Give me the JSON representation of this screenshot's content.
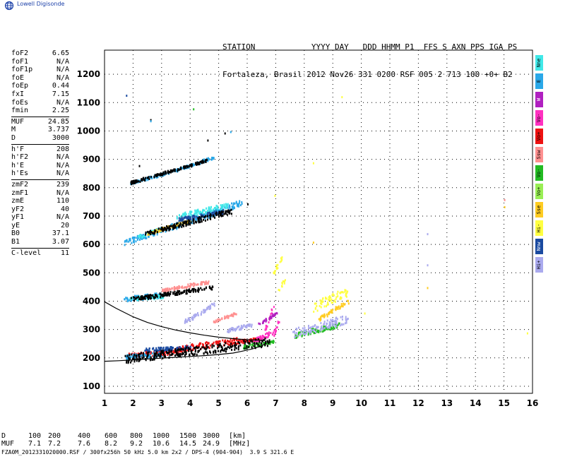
{
  "brand": {
    "name": "Lowell Digisonde"
  },
  "header": {
    "line1": "STATION            YYYY DAY   DDD HHMM P1  FFS S AXN PPS IGA PS",
    "line2": "Fortaleza, Brasil 2012 Nov26 331 0200 RSF 005 2 713 100 +0+ B2"
  },
  "parameters": {
    "group1": [
      {
        "name": "foF2",
        "value": "6.65"
      },
      {
        "name": "foF1",
        "value": "N/A"
      },
      {
        "name": "foF1p",
        "value": "N/A"
      },
      {
        "name": "foE",
        "value": "N/A"
      },
      {
        "name": "foEp",
        "value": "0.44"
      },
      {
        "name": "fxI",
        "value": "7.15"
      },
      {
        "name": "foEs",
        "value": "N/A"
      },
      {
        "name": "fmin",
        "value": "2.25"
      }
    ],
    "group2": [
      {
        "name": "MUF",
        "value": "24.85"
      },
      {
        "name": "M",
        "value": "3.737"
      },
      {
        "name": "D",
        "value": "3000"
      }
    ],
    "group3": [
      {
        "name": "h'F",
        "value": "208"
      },
      {
        "name": "h'F2",
        "value": "N/A"
      },
      {
        "name": "h'E",
        "value": "N/A"
      },
      {
        "name": "h'Es",
        "value": "N/A"
      }
    ],
    "group4": [
      {
        "name": "zmF2",
        "value": "239"
      },
      {
        "name": "zmF1",
        "value": "N/A"
      },
      {
        "name": "zmE",
        "value": "110"
      },
      {
        "name": "yF2",
        "value": "40"
      },
      {
        "name": "yF1",
        "value": "N/A"
      },
      {
        "name": "yE",
        "value": "20"
      },
      {
        "name": "B0",
        "value": "37.1"
      },
      {
        "name": "B1",
        "value": "3.07"
      }
    ],
    "group5": [
      {
        "name": "C-level",
        "value": "11"
      }
    ]
  },
  "legend": [
    {
      "label": "Nne",
      "color": "#40e8e8"
    },
    {
      "label": "E",
      "color": "#2aa8e8"
    },
    {
      "label": "W",
      "color": "#b020c0"
    },
    {
      "label": "Vo-",
      "color": "#ff30c0"
    },
    {
      "label": "Vo+",
      "color": "#ee1111"
    },
    {
      "label": "Ssw",
      "color": "#ff9090"
    },
    {
      "label": "Vo-",
      "color": "#22bb22"
    },
    {
      "label": "Vo+",
      "color": "#99ee55"
    },
    {
      "label": "Sse",
      "color": "#ffcc22"
    },
    {
      "label": "Hi-",
      "color": "#ffff40"
    },
    {
      "label": "Nnw",
      "color": "#1a4aa0"
    },
    {
      "label": "Hi+",
      "color": "#aaaaee"
    }
  ],
  "chart_data": {
    "type": "scatter",
    "title": "",
    "xlabel": "",
    "ylabel": "",
    "xlim": [
      1,
      16
    ],
    "ylim": [
      75,
      1285
    ],
    "x_ticks": [
      1,
      2,
      3,
      4,
      5,
      6,
      7,
      8,
      9,
      10,
      11,
      12,
      13,
      14,
      15,
      16
    ],
    "y_ticks": [
      100,
      200,
      300,
      400,
      500,
      600,
      700,
      800,
      900,
      1000,
      1100,
      1200
    ],
    "grid": true,
    "traces": [
      {
        "name": "Vo+",
        "color": "#ee1111",
        "segments": [
          [
            1.8,
            210,
            2.6,
            220,
            8
          ],
          [
            2.6,
            215,
            3.6,
            230,
            10
          ],
          [
            3.6,
            235,
            4.6,
            250,
            10
          ],
          [
            4.6,
            245,
            5.6,
            265,
            10
          ],
          [
            5.6,
            260,
            6.5,
            270,
            6
          ]
        ]
      },
      {
        "name": "E",
        "color": "#2aa8e8",
        "segments": [
          [
            1.7,
            205,
            3.0,
            215,
            8
          ],
          [
            1.7,
            410,
            3.0,
            425,
            8
          ],
          [
            1.7,
            610,
            3.2,
            660,
            8
          ],
          [
            3.2,
            660,
            5.8,
            750,
            10
          ],
          [
            1.9,
            820,
            3.4,
            860,
            4
          ],
          [
            3.4,
            860,
            4.8,
            910,
            4
          ]
        ]
      },
      {
        "name": "Nne",
        "color": "#40e8e8",
        "segments": [
          [
            1.8,
            410,
            3.1,
            420,
            6
          ],
          [
            3.5,
            700,
            5.3,
            740,
            8
          ],
          [
            2.2,
            630,
            3.0,
            660,
            5
          ]
        ]
      },
      {
        "name": "Vo-",
        "color": "#ff30c0",
        "segments": [
          [
            6.2,
            260,
            7.0,
            300,
            8
          ],
          [
            6.9,
            280,
            7.1,
            330,
            6
          ],
          [
            6.6,
            300,
            6.9,
            390,
            6
          ]
        ]
      },
      {
        "name": "Vo-",
        "color": "#22bb22",
        "segments": [
          [
            5.8,
            240,
            6.9,
            260,
            6
          ],
          [
            7.6,
            280,
            9.2,
            320,
            8
          ]
        ]
      },
      {
        "name": "Hi+",
        "color": "#aaaaee",
        "segments": [
          [
            7.6,
            290,
            9.5,
            340,
            14
          ],
          [
            3.8,
            330,
            4.8,
            390,
            6
          ],
          [
            5.3,
            300,
            6.2,
            320,
            6
          ]
        ]
      },
      {
        "name": "Hi-",
        "color": "#ffff40",
        "segments": [
          [
            8.3,
            380,
            9.5,
            440,
            16
          ],
          [
            7.1,
            440,
            7.3,
            480,
            4
          ],
          [
            6.9,
            500,
            7.2,
            560,
            4
          ]
        ]
      },
      {
        "name": "Sse",
        "color": "#ffcc22",
        "segments": [
          [
            8.5,
            340,
            9.5,
            400,
            6
          ],
          [
            2.5,
            640,
            4.0,
            690,
            4
          ]
        ]
      },
      {
        "name": "Ssw",
        "color": "#ff9090",
        "segments": [
          [
            4.8,
            330,
            5.6,
            360,
            4
          ],
          [
            3.0,
            440,
            4.6,
            470,
            5
          ]
        ]
      },
      {
        "name": "Nnw",
        "color": "#1a4aa0",
        "segments": [
          [
            2.4,
            230,
            4.0,
            240,
            6
          ],
          [
            3.6,
            690,
            5.2,
            720,
            6
          ]
        ]
      },
      {
        "name": "W",
        "color": "#b020c0",
        "segments": [
          [
            6.4,
            320,
            7.0,
            360,
            4
          ]
        ]
      },
      {
        "name": "noise",
        "color": "#000000",
        "segments": [
          [
            1.7,
            200,
            6.8,
            260,
            14
          ],
          [
            1.9,
            410,
            4.8,
            450,
            6
          ],
          [
            2.4,
            640,
            5.4,
            720,
            8
          ],
          [
            1.9,
            820,
            4.6,
            900,
            4
          ]
        ]
      }
    ],
    "isolated_points": [
      {
        "x": 1.75,
        "y": 1128,
        "color": "#1a4aa0"
      },
      {
        "x": 2.6,
        "y": 1042,
        "color": "#000000"
      },
      {
        "x": 2.6,
        "y": 1038,
        "color": "#2aa8e8"
      },
      {
        "x": 5.2,
        "y": 995,
        "color": "#000000"
      },
      {
        "x": 5.4,
        "y": 1000,
        "color": "#2aa8e8"
      },
      {
        "x": 4.6,
        "y": 970,
        "color": "#000000"
      },
      {
        "x": 9.3,
        "y": 1123,
        "color": "#ffff40"
      },
      {
        "x": 12.3,
        "y": 640,
        "color": "#aaaaee"
      },
      {
        "x": 12.3,
        "y": 530,
        "color": "#aaaaee"
      },
      {
        "x": 12.3,
        "y": 450,
        "color": "#ffcc22"
      },
      {
        "x": 15.0,
        "y": 760,
        "color": "#ff9090"
      },
      {
        "x": 15.0,
        "y": 735,
        "color": "#ffcc22"
      },
      {
        "x": 15.8,
        "y": 290,
        "color": "#ffff40"
      },
      {
        "x": 10.1,
        "y": 360,
        "color": "#ffff40"
      },
      {
        "x": 8.3,
        "y": 610,
        "color": "#ffcc22"
      },
      {
        "x": 8.3,
        "y": 890,
        "color": "#ffff40"
      },
      {
        "x": 6.0,
        "y": 745,
        "color": "#000000"
      },
      {
        "x": 4.1,
        "y": 1080,
        "color": "#22bb22"
      },
      {
        "x": 2.2,
        "y": 880,
        "color": "#000000"
      },
      {
        "x": 6.95,
        "y": 775,
        "color": "#ffff40"
      }
    ],
    "profile_curves": [
      {
        "name": "upper",
        "points": [
          [
            1,
            398
          ],
          [
            1.4,
            375
          ],
          [
            2.0,
            345
          ],
          [
            2.5,
            325
          ],
          [
            3.0,
            310
          ],
          [
            3.5,
            298
          ],
          [
            4.0,
            288
          ],
          [
            4.5,
            280
          ],
          [
            5.0,
            273
          ],
          [
            5.5,
            268
          ],
          [
            6.0,
            264
          ],
          [
            6.5,
            262
          ],
          [
            6.65,
            261
          ]
        ]
      },
      {
        "name": "lower",
        "points": [
          [
            1,
            188
          ],
          [
            1.5,
            190
          ],
          [
            2.0,
            193
          ],
          [
            2.5,
            196
          ],
          [
            3.0,
            199
          ],
          [
            3.5,
            202
          ],
          [
            4.0,
            205
          ],
          [
            4.5,
            208
          ],
          [
            5.0,
            212
          ],
          [
            5.5,
            217
          ],
          [
            5.8,
            223
          ],
          [
            6.2,
            232
          ],
          [
            6.5,
            242
          ],
          [
            6.65,
            252
          ]
        ]
      }
    ]
  },
  "scale_table": {
    "d_label": "D",
    "d_values": [
      "100",
      "200",
      "400",
      "600",
      "800",
      "1000",
      "1500",
      "3000"
    ],
    "d_unit": "[km]",
    "muf_label": "MUF",
    "muf_values": [
      "7.1",
      "7.2",
      "7.6",
      "8.2",
      "9.2",
      "10.6",
      "14.5",
      "24.9"
    ],
    "muf_unit": "[MHz]"
  },
  "footer": {
    "text": "FZA0M_2012331020000.RSF / 300fx256h 50 kHz 5.0 km 2x2 / DPS-4 (904-904)  3.9 S 321.6 E"
  }
}
